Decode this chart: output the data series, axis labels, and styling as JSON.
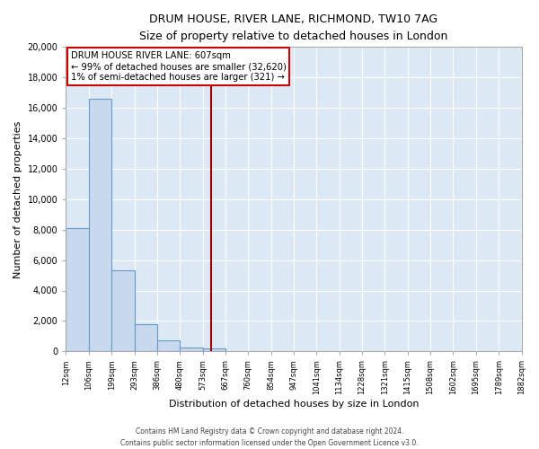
{
  "title": "DRUM HOUSE, RIVER LANE, RICHMOND, TW10 7AG",
  "subtitle": "Size of property relative to detached houses in London",
  "xlabel": "Distribution of detached houses by size in London",
  "ylabel": "Number of detached properties",
  "bin_labels": [
    "12sqm",
    "106sqm",
    "199sqm",
    "293sqm",
    "386sqm",
    "480sqm",
    "573sqm",
    "667sqm",
    "760sqm",
    "854sqm",
    "947sqm",
    "1041sqm",
    "1134sqm",
    "1228sqm",
    "1321sqm",
    "1415sqm",
    "1508sqm",
    "1602sqm",
    "1695sqm",
    "1789sqm",
    "1882sqm"
  ],
  "bar_heights": [
    8100,
    16600,
    5300,
    1800,
    750,
    280,
    200,
    0,
    0,
    0,
    0,
    0,
    0,
    0,
    0,
    0,
    0,
    0,
    0,
    0
  ],
  "bar_color": "#c8d9ed",
  "bar_edge_color": "#6699cc",
  "ylim": [
    0,
    20000
  ],
  "yticks": [
    0,
    2000,
    4000,
    6000,
    8000,
    10000,
    12000,
    14000,
    16000,
    18000,
    20000
  ],
  "property_line_color": "#990000",
  "annotation_title": "DRUM HOUSE RIVER LANE: 607sqm",
  "annotation_line1": "← 99% of detached houses are smaller (32,620)",
  "annotation_line2": "1% of semi-detached houses are larger (321) →",
  "annotation_box_color": "#ffffff",
  "annotation_border_color": "#cc0000",
  "plot_bg_color": "#dce9f5",
  "fig_bg_color": "#ffffff",
  "grid_color": "#ffffff",
  "footer1": "Contains HM Land Registry data © Crown copyright and database right 2024.",
  "footer2": "Contains public sector information licensed under the Open Government Licence v3.0."
}
